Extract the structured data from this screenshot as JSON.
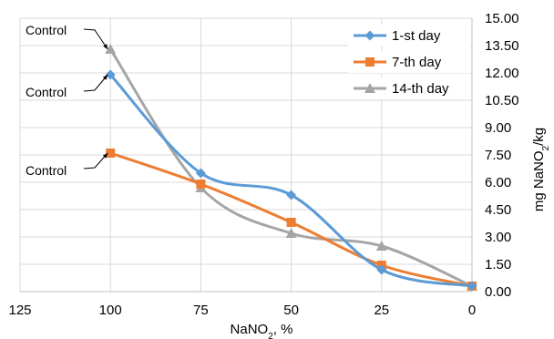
{
  "chart_data": {
    "type": "line",
    "xlabel": "NaNO",
    "xlabel_sub": "2",
    "xlabel_unit": ", %",
    "ylabel": "mg NaNO",
    "ylabel_sub": "2",
    "ylabel_unit": "/kg",
    "xlim": [
      125,
      0
    ],
    "ylim": [
      0,
      15
    ],
    "x_ticks": [
      125,
      100,
      75,
      50,
      25,
      0
    ],
    "y_ticks": [
      "0.00",
      "1.50",
      "3.00",
      "4.50",
      "6.00",
      "7.50",
      "9.00",
      "10.50",
      "12.00",
      "13.50",
      "15.00"
    ],
    "grid": true,
    "legend_position": "top-right",
    "x": [
      100,
      75,
      50,
      25,
      0
    ],
    "series": [
      {
        "name": "1-st day",
        "values": [
          11.9,
          6.5,
          5.3,
          1.2,
          0.3
        ],
        "color": "#5B9BD5",
        "marker": "diamond"
      },
      {
        "name": "7-th day",
        "values": [
          7.6,
          5.9,
          3.8,
          1.45,
          0.3
        ],
        "color": "#ED7D31",
        "marker": "square"
      },
      {
        "name": "14-th day",
        "values": [
          13.3,
          5.7,
          3.2,
          2.5,
          0.3
        ],
        "color": "#A5A5A5",
        "marker": "triangle"
      }
    ],
    "annotations": [
      {
        "text": "Control",
        "target_series": 2,
        "target_index": 0
      },
      {
        "text": "Control",
        "target_series": 0,
        "target_index": 0
      },
      {
        "text": "Control",
        "target_series": 1,
        "target_index": 0
      }
    ]
  }
}
